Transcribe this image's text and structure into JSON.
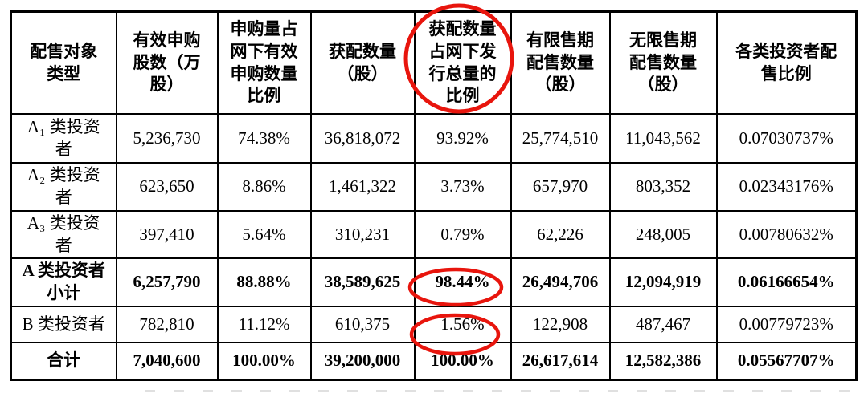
{
  "page": {
    "background": "#ffffff",
    "text_color": "#000000",
    "border_color": "#000000"
  },
  "table": {
    "description": "网下配售结果表",
    "columns": [
      "配售对象\n类型",
      "有效申购\n股数（万\n股）",
      "申购量占\n网下有效\n申购数量\n比例",
      "获配数量\n（股）",
      "获配数量\n占网下发\n行总量的\n比例",
      "有限售期\n配售数量\n（股）",
      "无限售期\n配售数量\n（股）",
      "各类投资者配\n售比例"
    ],
    "rows": [
      {
        "label": "A₁ 类投资\n者",
        "bold": false,
        "values": [
          "5,236,730",
          "74.38%",
          "36,818,072",
          "93.92%",
          "25,774,510",
          "11,043,562",
          "0.07030737%"
        ]
      },
      {
        "label": "A₂ 类投资\n者",
        "bold": false,
        "values": [
          "623,650",
          "8.86%",
          "1,461,322",
          "3.73%",
          "657,970",
          "803,352",
          "0.02343176%"
        ]
      },
      {
        "label": "A₃ 类投资\n者",
        "bold": false,
        "values": [
          "397,410",
          "5.64%",
          "310,231",
          "0.79%",
          "62,226",
          "248,005",
          "0.00780632%"
        ]
      },
      {
        "label": "A 类投资者\n小计",
        "bold": true,
        "values": [
          "6,257,790",
          "88.88%",
          "38,589,625",
          "98.44%",
          "26,494,706",
          "12,094,919",
          "0.06166654%"
        ]
      },
      {
        "label": "B 类投资者",
        "bold": false,
        "values": [
          "782,810",
          "11.12%",
          "610,375",
          "1.56%",
          "122,908",
          "487,467",
          "0.00779723%"
        ]
      },
      {
        "label": "合计",
        "bold": true,
        "values": [
          "7,040,600",
          "100.00%",
          "39,200,000",
          "100.00%",
          "26,617,614",
          "12,582,386",
          "0.05567707%"
        ]
      }
    ]
  },
  "annotations": {
    "pen_color": "#e8150d",
    "circled": [
      {
        "target": "column-header-5",
        "text": "获配数量占网下发行总量的比例"
      },
      {
        "target": "a-subtotal-ratio",
        "text": "98.44%"
      },
      {
        "target": "b-ratio",
        "text": "1.56%"
      }
    ]
  }
}
